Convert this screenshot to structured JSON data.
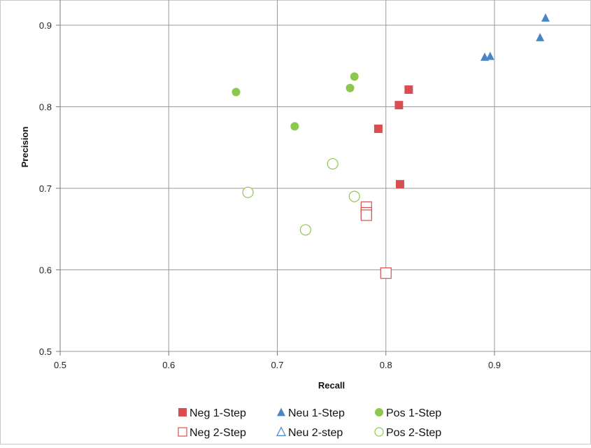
{
  "chart_data": {
    "type": "scatter",
    "title": "",
    "xlabel": "Recall",
    "ylabel": "Precision",
    "xlim": [
      0.5,
      0.99
    ],
    "ylim": [
      0.5,
      0.93
    ],
    "x_ticks": [
      "0.5",
      "0.6",
      "0.7",
      "0.8",
      "0.9"
    ],
    "y_ticks": [
      "0.5",
      "0.6",
      "0.7",
      "0.8",
      "0.9"
    ],
    "grid": true,
    "legend_position": "bottom",
    "colors": {
      "neg": "#d94f51",
      "neu": "#4a86c5",
      "pos": "#8cc84b"
    },
    "series": [
      {
        "name": "Neg 1-Step",
        "marker": "square",
        "filled": true,
        "color": "#d94f51",
        "points": [
          [
            0.821,
            0.821
          ],
          [
            0.812,
            0.802
          ],
          [
            0.793,
            0.773
          ],
          [
            0.813,
            0.705
          ]
        ]
      },
      {
        "name": "Neu 1-Step",
        "marker": "triangle",
        "filled": true,
        "color": "#4a86c5",
        "points": [
          [
            0.947,
            0.909
          ],
          [
            0.942,
            0.885
          ],
          [
            0.891,
            0.861
          ],
          [
            0.896,
            0.862
          ]
        ]
      },
      {
        "name": "Pos 1-Step",
        "marker": "circle",
        "filled": true,
        "color": "#8cc84b",
        "points": [
          [
            0.662,
            0.818
          ],
          [
            0.716,
            0.776
          ],
          [
            0.767,
            0.823
          ],
          [
            0.771,
            0.837
          ]
        ]
      },
      {
        "name": "Neg 2-Step",
        "marker": "square",
        "filled": false,
        "color": "#d94f51",
        "points": [
          [
            0.782,
            0.677
          ],
          [
            0.782,
            0.67
          ],
          [
            0.782,
            0.667
          ],
          [
            0.8,
            0.596
          ]
        ]
      },
      {
        "name": "Neu 2-step",
        "marker": "triangle",
        "filled": false,
        "color": "#4a86c5",
        "points": []
      },
      {
        "name": "Pos 2-Step",
        "marker": "circle",
        "filled": false,
        "color": "#8cc84b",
        "points": [
          [
            0.673,
            0.695
          ],
          [
            0.751,
            0.73
          ],
          [
            0.771,
            0.69
          ],
          [
            0.726,
            0.649
          ]
        ]
      }
    ]
  }
}
